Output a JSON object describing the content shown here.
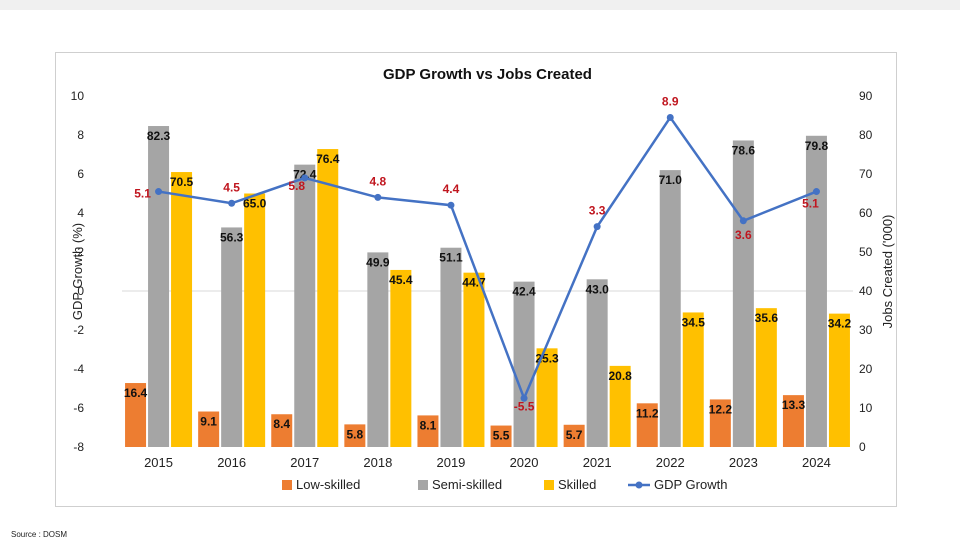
{
  "source": "Source : DOSM",
  "colors": {
    "low": "#ed7d31",
    "semi": "#a5a5a5",
    "skilled": "#ffc000",
    "gdp": "#4472c4",
    "gdp_label": "#c0161f",
    "grid": "#d9d9d9"
  },
  "chart_data": {
    "type": "bar",
    "title": "GDP Growth vs Jobs Created",
    "categories": [
      "2015",
      "2016",
      "2017",
      "2018",
      "2019",
      "2020",
      "2021",
      "2022",
      "2023",
      "2024"
    ],
    "series": [
      {
        "name": "Low-skilled",
        "axis": "right",
        "values": [
          16.4,
          9.1,
          8.4,
          5.8,
          8.1,
          5.5,
          5.7,
          11.2,
          12.2,
          13.3
        ],
        "labels": [
          "16.4",
          "9.1",
          "8.4",
          "5.8",
          "8.1",
          "5.5",
          "5.7",
          "11.2",
          "12.2",
          "13.3"
        ]
      },
      {
        "name": "Semi-skilled",
        "axis": "right",
        "values": [
          82.3,
          56.3,
          72.4,
          49.9,
          51.1,
          42.4,
          43.0,
          71.0,
          78.6,
          79.8
        ],
        "labels": [
          "82.3",
          "56.3",
          "72.4",
          "49.9",
          "51.1",
          "42.4",
          "43.0",
          "71.0",
          "78.6",
          "79.8"
        ]
      },
      {
        "name": "Skilled",
        "axis": "right",
        "values": [
          70.5,
          65.0,
          76.4,
          45.4,
          44.7,
          25.3,
          20.8,
          34.5,
          35.6,
          34.2
        ],
        "labels": [
          "70.5",
          "65.0",
          "76.4",
          "45.4",
          "44.7",
          "25.3",
          "20.8",
          "34.5",
          "35.6",
          "34.2"
        ]
      },
      {
        "name": "GDP Growth",
        "type": "line",
        "axis": "left",
        "values": [
          5.1,
          4.5,
          5.8,
          4.8,
          4.4,
          -5.5,
          3.3,
          8.9,
          3.6,
          5.1
        ],
        "labels": [
          "5.1",
          "4.5",
          "5.8",
          "4.8",
          "4.4",
          "-5.5",
          "3.3",
          "8.9",
          "3.6",
          "5.1"
        ]
      }
    ],
    "y_left": {
      "label": "GDP Growth (%)",
      "range": [
        -8,
        10
      ],
      "ticks": [
        -8,
        -6,
        -4,
        -2,
        0,
        2,
        4,
        6,
        8,
        10
      ],
      "tick_labels": [
        "-8",
        "-6",
        "-4",
        "-2",
        "0",
        "2",
        "4",
        "6",
        "8",
        "10"
      ]
    },
    "y_right": {
      "label": "Jobs Created ('000)",
      "range": [
        0,
        90
      ],
      "ticks": [
        0,
        10,
        20,
        30,
        40,
        50,
        60,
        70,
        80,
        90
      ],
      "tick_labels": [
        "0",
        "10",
        "20",
        "30",
        "40",
        "50",
        "60",
        "70",
        "80",
        "90"
      ]
    },
    "legend": {
      "position": "bottom",
      "items": [
        "Low-skilled",
        "Semi-skilled",
        "Skilled",
        "GDP Growth"
      ]
    },
    "grid": "horizontal-zero-line"
  }
}
